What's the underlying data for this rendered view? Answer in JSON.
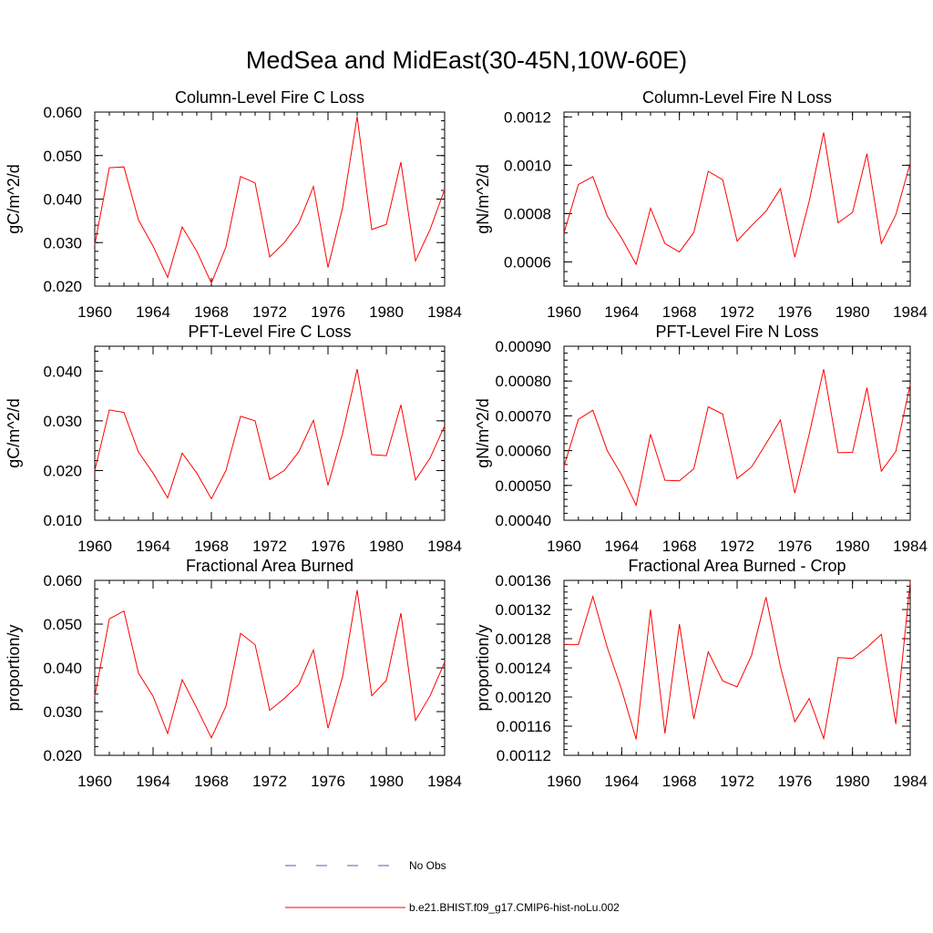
{
  "page_title": "MedSea and MidEast(30-45N,10W-60E)",
  "legend": [
    {
      "label": "No Obs",
      "color": "#5b5bb0",
      "dash": true
    },
    {
      "label": "b.e21.BHIST.f09_g17.CMIP6-hist-noLu.002",
      "color": "#ff0000",
      "dash": false
    }
  ],
  "chart_data": [
    {
      "type": "line",
      "title": "Column-Level Fire C Loss",
      "ylabel": "gC/m^2/d",
      "xlim": [
        1960,
        1984
      ],
      "ylim": [
        0.02,
        0.06
      ],
      "yticks": [
        0.02,
        0.03,
        0.04,
        0.05,
        0.06
      ],
      "yticklabels": [
        "0.020",
        "0.030",
        "0.040",
        "0.050",
        "0.060"
      ],
      "xticks": [
        1960,
        1964,
        1968,
        1972,
        1976,
        1980,
        1984
      ],
      "xticklabels": [
        "1960",
        "1964",
        "1968",
        "1972",
        "1976",
        "1980",
        "1984"
      ],
      "x": [
        1960,
        1961,
        1962,
        1963,
        1964,
        1965,
        1966,
        1967,
        1968,
        1969,
        1970,
        1971,
        1972,
        1973,
        1974,
        1975,
        1976,
        1977,
        1978,
        1979,
        1980,
        1981,
        1982,
        1983,
        1984
      ],
      "series": [
        {
          "color": "#ff0000",
          "values": [
            0.0295,
            0.0472,
            0.0474,
            0.0352,
            0.0292,
            0.022,
            0.0336,
            0.028,
            0.0207,
            0.029,
            0.0452,
            0.0437,
            0.0267,
            0.03,
            0.0345,
            0.0429,
            0.0243,
            0.038,
            0.059,
            0.033,
            0.0342,
            0.0485,
            0.0258,
            0.033,
            0.0422
          ]
        }
      ]
    },
    {
      "type": "line",
      "title": "Column-Level Fire N Loss",
      "ylabel": "gN/m^2/d",
      "xlim": [
        1960,
        1984
      ],
      "ylim": [
        0.0005,
        0.00122
      ],
      "yticks": [
        0.0006,
        0.0008,
        0.001,
        0.0012
      ],
      "yticklabels": [
        "0.0006",
        "0.0008",
        "0.0010",
        "0.0012"
      ],
      "xticks": [
        1960,
        1964,
        1968,
        1972,
        1976,
        1980,
        1984
      ],
      "xticklabels": [
        "1960",
        "1964",
        "1968",
        "1972",
        "1976",
        "1980",
        "1984"
      ],
      "x": [
        1960,
        1961,
        1962,
        1963,
        1964,
        1965,
        1966,
        1967,
        1968,
        1969,
        1970,
        1971,
        1972,
        1973,
        1974,
        1975,
        1976,
        1977,
        1978,
        1979,
        1980,
        1981,
        1982,
        1983,
        1984
      ],
      "series": [
        {
          "color": "#ff0000",
          "values": [
            0.00072,
            0.00092,
            0.000953,
            0.00079,
            0.000698,
            0.00059,
            0.000822,
            0.000676,
            0.000641,
            0.000722,
            0.000975,
            0.00094,
            0.000686,
            0.00075,
            0.00081,
            0.000903,
            0.00062,
            0.000852,
            0.001135,
            0.000762,
            0.000805,
            0.001048,
            0.000676,
            0.000795,
            0.00101
          ]
        }
      ]
    },
    {
      "type": "line",
      "title": "PFT-Level Fire C Loss",
      "ylabel": "gC/m^2/d",
      "xlim": [
        1960,
        1984
      ],
      "ylim": [
        0.01,
        0.045
      ],
      "yticks": [
        0.01,
        0.02,
        0.03,
        0.04
      ],
      "yticklabels": [
        "0.010",
        "0.020",
        "0.030",
        "0.040"
      ],
      "xticks": [
        1960,
        1964,
        1968,
        1972,
        1976,
        1980,
        1984
      ],
      "xticklabels": [
        "1960",
        "1964",
        "1968",
        "1972",
        "1976",
        "1980",
        "1984"
      ],
      "x": [
        1960,
        1961,
        1962,
        1963,
        1964,
        1965,
        1966,
        1967,
        1968,
        1969,
        1970,
        1971,
        1972,
        1973,
        1974,
        1975,
        1976,
        1977,
        1978,
        1979,
        1980,
        1981,
        1982,
        1983,
        1984
      ],
      "series": [
        {
          "color": "#ff0000",
          "values": [
            0.02,
            0.0322,
            0.0317,
            0.0237,
            0.0195,
            0.0145,
            0.0235,
            0.0195,
            0.0143,
            0.02,
            0.0309,
            0.03,
            0.0182,
            0.02,
            0.0238,
            0.0301,
            0.017,
            0.0275,
            0.0404,
            0.0232,
            0.023,
            0.0332,
            0.0181,
            0.0225,
            0.029
          ]
        }
      ]
    },
    {
      "type": "line",
      "title": "PFT-Level Fire N Loss",
      "ylabel": "gN/m^2/d",
      "xlim": [
        1960,
        1984
      ],
      "ylim": [
        0.0004,
        0.0009
      ],
      "yticks": [
        0.0004,
        0.0005,
        0.0006,
        0.0007,
        0.0008,
        0.0009
      ],
      "yticklabels": [
        "0.00040",
        "0.00050",
        "0.00060",
        "0.00070",
        "0.00080",
        "0.00090"
      ],
      "xticks": [
        1960,
        1964,
        1968,
        1972,
        1976,
        1980,
        1984
      ],
      "xticklabels": [
        "1960",
        "1964",
        "1968",
        "1972",
        "1976",
        "1980",
        "1984"
      ],
      "x": [
        1960,
        1961,
        1962,
        1963,
        1964,
        1965,
        1966,
        1967,
        1968,
        1969,
        1970,
        1971,
        1972,
        1973,
        1974,
        1975,
        1976,
        1977,
        1978,
        1979,
        1980,
        1981,
        1982,
        1983,
        1984
      ],
      "series": [
        {
          "color": "#ff0000",
          "values": [
            0.000555,
            0.00069,
            0.000716,
            0.0006,
            0.00053,
            0.000443,
            0.000647,
            0.000515,
            0.000513,
            0.000548,
            0.000726,
            0.000705,
            0.00052,
            0.000553,
            0.00062,
            0.000688,
            0.000478,
            0.000648,
            0.000834,
            0.000594,
            0.000595,
            0.000781,
            0.000541,
            0.000598,
            0.00079
          ]
        }
      ]
    },
    {
      "type": "line",
      "title": "Fractional Area Burned",
      "ylabel": "proportion/y",
      "xlim": [
        1960,
        1984
      ],
      "ylim": [
        0.02,
        0.06
      ],
      "yticks": [
        0.02,
        0.03,
        0.04,
        0.05,
        0.06
      ],
      "yticklabels": [
        "0.020",
        "0.030",
        "0.040",
        "0.050",
        "0.060"
      ],
      "xticks": [
        1960,
        1964,
        1968,
        1972,
        1976,
        1980,
        1984
      ],
      "xticklabels": [
        "1960",
        "1964",
        "1968",
        "1972",
        "1976",
        "1980",
        "1984"
      ],
      "x": [
        1960,
        1961,
        1962,
        1963,
        1964,
        1965,
        1966,
        1967,
        1968,
        1969,
        1970,
        1971,
        1972,
        1973,
        1974,
        1975,
        1976,
        1977,
        1978,
        1979,
        1980,
        1981,
        1982,
        1983,
        1984
      ],
      "series": [
        {
          "color": "#ff0000",
          "values": [
            0.0335,
            0.0512,
            0.053,
            0.0388,
            0.0335,
            0.025,
            0.0373,
            0.0308,
            0.024,
            0.0312,
            0.0479,
            0.0453,
            0.0303,
            0.033,
            0.0362,
            0.0441,
            0.0262,
            0.038,
            0.0578,
            0.0336,
            0.0371,
            0.0525,
            0.028,
            0.0336,
            0.0413
          ]
        }
      ]
    },
    {
      "type": "line",
      "title": "Fractional Area Burned - Crop",
      "ylabel": "proportion/y",
      "xlim": [
        1960,
        1984
      ],
      "ylim": [
        0.00112,
        0.00136
      ],
      "yticks": [
        0.00112,
        0.00116,
        0.0012,
        0.00124,
        0.00128,
        0.00132,
        0.00136
      ],
      "yticklabels": [
        "0.00112",
        "0.00116",
        "0.00120",
        "0.00124",
        "0.00128",
        "0.00132",
        "0.00136"
      ],
      "xticks": [
        1960,
        1964,
        1968,
        1972,
        1976,
        1980,
        1984
      ],
      "xticklabels": [
        "1960",
        "1964",
        "1968",
        "1972",
        "1976",
        "1980",
        "1984"
      ],
      "x": [
        1960,
        1961,
        1962,
        1963,
        1964,
        1965,
        1966,
        1967,
        1968,
        1969,
        1970,
        1971,
        1972,
        1973,
        1974,
        1975,
        1976,
        1977,
        1978,
        1979,
        1980,
        1981,
        1982,
        1983,
        1984
      ],
      "series": [
        {
          "color": "#ff0000",
          "values": [
            0.001272,
            0.001272,
            0.001338,
            0.001268,
            0.00121,
            0.001142,
            0.00132,
            0.00115,
            0.0013,
            0.00117,
            0.001262,
            0.001222,
            0.001214,
            0.001257,
            0.001337,
            0.001242,
            0.001166,
            0.001198,
            0.001143,
            0.001254,
            0.001253,
            0.001268,
            0.001286,
            0.001163,
            0.001358
          ]
        }
      ]
    }
  ]
}
